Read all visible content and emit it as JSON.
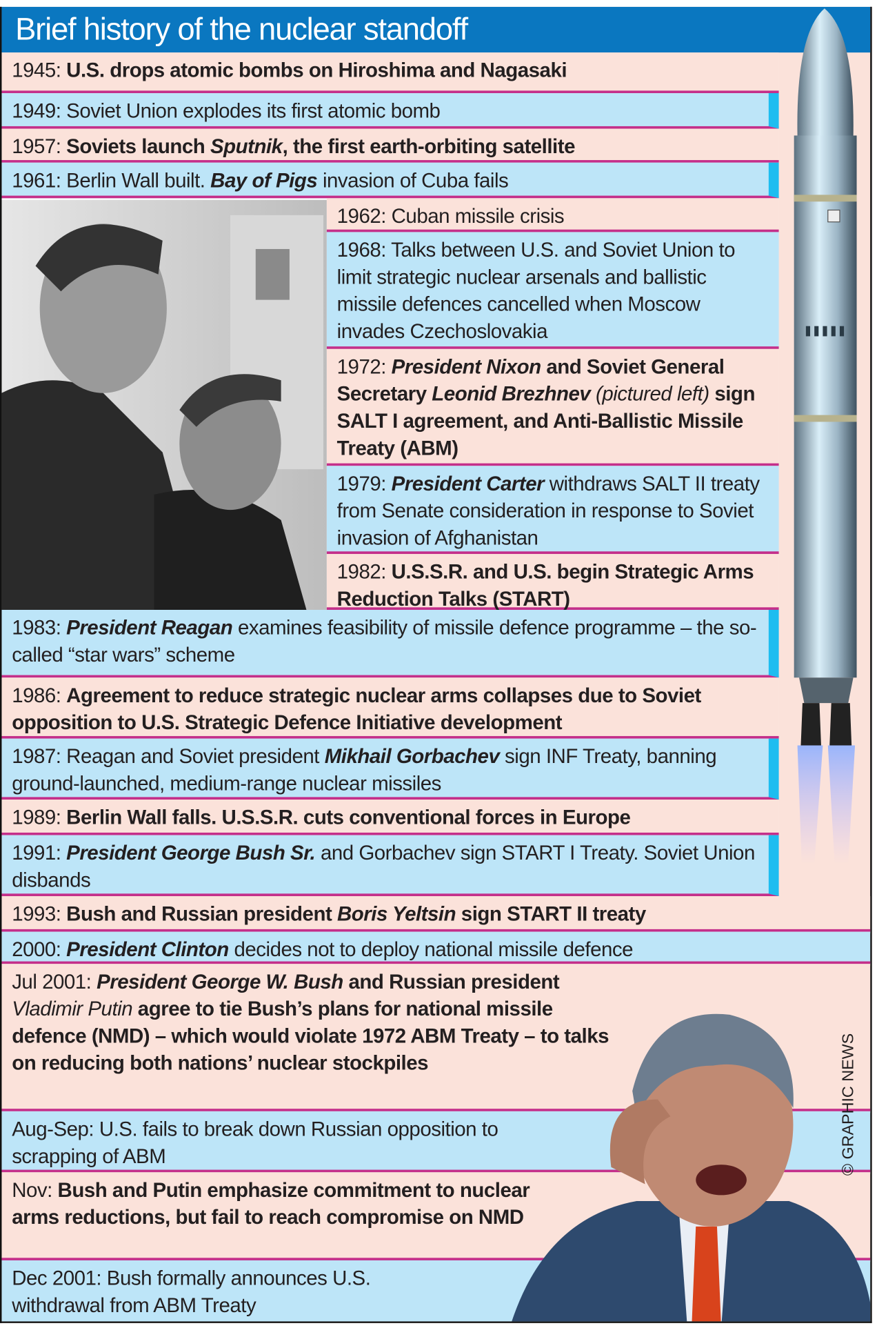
{
  "title": "Brief history of the nuclear standoff",
  "credit": "© GRAPHIC NEWS",
  "colors": {
    "header": "#0a77c0",
    "pink_row": "#fbe2da",
    "blue_row": "#bde5f8",
    "separator": "#c42f8a"
  },
  "photo": {
    "subject": "Nixon and Brezhnev black-and-white photo"
  },
  "images": {
    "missile": "missile-illustration",
    "bush": "george-w-bush-illustration"
  },
  "entries": [
    {
      "color": "pink",
      "segments": [
        {
          "t": "1945: "
        },
        {
          "t": "U.S. drops atomic bombs on Hiroshima and Nagasaki",
          "b": 1
        }
      ]
    },
    {
      "color": "blue",
      "segments": [
        {
          "t": "1949: Soviet Union explodes its first atomic bomb"
        }
      ]
    },
    {
      "color": "pink",
      "segments": [
        {
          "t": "1957: "
        },
        {
          "t": "Soviets launch ",
          "b": 1
        },
        {
          "t": "Sputnik",
          "b": 1,
          "i": 1
        },
        {
          "t": ", the first earth-orbiting satellite",
          "b": 1
        }
      ]
    },
    {
      "color": "blue",
      "segments": [
        {
          "t": "1961: Berlin Wall built. "
        },
        {
          "t": "Bay of Pigs",
          "b": 1,
          "i": 1
        },
        {
          "t": " invasion of Cuba fails"
        }
      ]
    },
    {
      "color": "pink",
      "segments": [
        {
          "t": "1962: Cuban missile crisis"
        }
      ]
    },
    {
      "color": "blue",
      "segments": [
        {
          "t": "1968: Talks between U.S. and Soviet Union to limit strategic nuclear arsenals and ballistic missile defences cancelled when Moscow invades Czechoslovakia"
        }
      ]
    },
    {
      "color": "pink",
      "segments": [
        {
          "t": "1972: "
        },
        {
          "t": "President Nixon",
          "b": 1,
          "i": 1
        },
        {
          "t": " and Soviet General Secretary ",
          "b": 1
        },
        {
          "t": "Leonid Brezhnev",
          "b": 1,
          "i": 1
        },
        {
          "t": " (pictured left)",
          "i": 1
        },
        {
          "t": " sign SALT I agreement, and Anti-Ballistic Missile Treaty (ABM)",
          "b": 1
        }
      ]
    },
    {
      "color": "blue",
      "segments": [
        {
          "t": "1979: "
        },
        {
          "t": "President Carter",
          "b": 1,
          "i": 1
        },
        {
          "t": " withdraws SALT II treaty from Senate consideration in response to Soviet invasion of Afghanistan"
        }
      ]
    },
    {
      "color": "pink",
      "segments": [
        {
          "t": "1982: "
        },
        {
          "t": "U.S.S.R. and U.S. begin Strategic Arms Reduction Talks (START)",
          "b": 1
        }
      ]
    },
    {
      "color": "blue",
      "segments": [
        {
          "t": "1983: "
        },
        {
          "t": "President Reagan",
          "b": 1,
          "i": 1
        },
        {
          "t": " examines feasibility of missile defence programme – the so-called “star wars” scheme"
        }
      ]
    },
    {
      "color": "pink",
      "segments": [
        {
          "t": "1986: "
        },
        {
          "t": "Agreement to reduce strategic nuclear arms collapses due to Soviet opposition to U.S. Strategic Defence Initiative development",
          "b": 1
        }
      ]
    },
    {
      "color": "blue",
      "segments": [
        {
          "t": "1987: Reagan and Soviet president "
        },
        {
          "t": "Mikhail Gorbachev",
          "b": 1,
          "i": 1
        },
        {
          "t": " sign INF Treaty, banning ground-launched, medium-range nuclear missiles"
        }
      ]
    },
    {
      "color": "pink",
      "segments": [
        {
          "t": "1989: "
        },
        {
          "t": "Berlin Wall falls. U.S.S.R. cuts conventional forces in Europe",
          "b": 1
        }
      ]
    },
    {
      "color": "blue",
      "segments": [
        {
          "t": "1991: "
        },
        {
          "t": "President George Bush Sr.",
          "b": 1,
          "i": 1
        },
        {
          "t": " and Gorbachev sign START I Treaty. Soviet Union disbands"
        }
      ]
    },
    {
      "color": "pink",
      "segments": [
        {
          "t": "1993: "
        },
        {
          "t": "Bush and Russian president ",
          "b": 1
        },
        {
          "t": "Boris Yeltsin",
          "b": 1,
          "i": 1
        },
        {
          "t": " sign START II treaty",
          "b": 1
        }
      ]
    },
    {
      "color": "blue",
      "segments": [
        {
          "t": "2000: "
        },
        {
          "t": "President Clinton",
          "b": 1,
          "i": 1
        },
        {
          "t": " decides not to deploy national missile defence"
        }
      ]
    },
    {
      "color": "pink",
      "segments": [
        {
          "t": "Jul 2001: "
        },
        {
          "t": "President George W. Bush",
          "b": 1,
          "i": 1
        },
        {
          "t": " and Russian president ",
          "b": 1
        },
        {
          "t": "Vladimir Putin",
          "i": 1
        },
        {
          "t": " agree to tie Bush’s plans for national missile defence (NMD) – which would violate 1972 ABM Treaty – to talks on reducing both nations’ nuclear stockpiles",
          "b": 1
        }
      ]
    },
    {
      "color": "blue",
      "segments": [
        {
          "t": "Aug-Sep: U.S. fails to break down Russian opposition to scrapping of ABM"
        }
      ]
    },
    {
      "color": "pink",
      "segments": [
        {
          "t": "Nov: "
        },
        {
          "t": "Bush and Putin emphasize commitment to nuclear arms reductions, but fail to reach compromise on NMD",
          "b": 1
        }
      ]
    },
    {
      "color": "blue",
      "segments": [
        {
          "t": "Dec 2001: Bush formally announces U.S. withdrawal from ABM Treaty"
        }
      ]
    }
  ]
}
